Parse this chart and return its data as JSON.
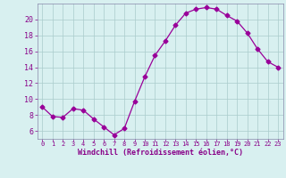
{
  "x": [
    0,
    1,
    2,
    3,
    4,
    5,
    6,
    7,
    8,
    9,
    10,
    11,
    12,
    13,
    14,
    15,
    16,
    17,
    18,
    19,
    20,
    21,
    22,
    23
  ],
  "y": [
    9.0,
    7.8,
    7.7,
    8.8,
    8.6,
    7.5,
    6.5,
    5.5,
    6.3,
    9.7,
    12.8,
    15.5,
    17.3,
    19.3,
    20.8,
    21.3,
    21.5,
    21.3,
    20.5,
    19.8,
    18.3,
    16.3,
    14.7,
    14.0
  ],
  "line_color": "#990099",
  "marker": "D",
  "marker_size": 2.5,
  "bg_color": "#d8f0f0",
  "grid_color": "#aacccc",
  "xlabel": "Windchill (Refroidissement éolien,°C)",
  "xlabel_color": "#880088",
  "tick_color": "#880088",
  "ylim": [
    5,
    22
  ],
  "xlim": [
    -0.5,
    23.5
  ],
  "yticks": [
    6,
    8,
    10,
    12,
    14,
    16,
    18,
    20
  ],
  "xticks": [
    0,
    1,
    2,
    3,
    4,
    5,
    6,
    7,
    8,
    9,
    10,
    11,
    12,
    13,
    14,
    15,
    16,
    17,
    18,
    19,
    20,
    21,
    22,
    23
  ],
  "spine_color": "#8888aa"
}
